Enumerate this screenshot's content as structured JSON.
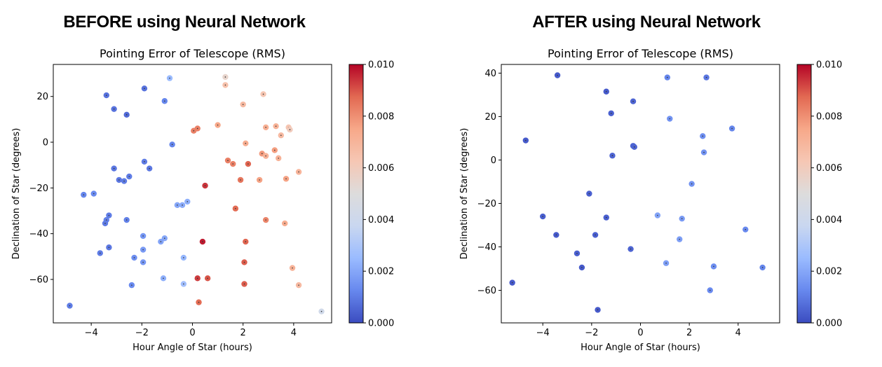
{
  "headings": {
    "before": "BEFORE using Neural Network",
    "after": "AFTER using Neural Network"
  },
  "colormap": {
    "name": "coolwarm",
    "stops": [
      "#3b4cc0",
      "#6788ee",
      "#9abbff",
      "#c9d7f0",
      "#dddcdc",
      "#f6c7b4",
      "#f7a889",
      "#e26952",
      "#b40426"
    ]
  },
  "chart_data": [
    {
      "type": "scatter",
      "title": "Pointing Error of Telescope (RMS)",
      "xlabel": "Hour Angle of Star (hours)",
      "ylabel": "Declination of Star (degrees)",
      "xlim": [
        -5.5,
        5.5
      ],
      "ylim": [
        -79,
        34
      ],
      "xticks": [
        -4,
        -2,
        0,
        2,
        4
      ],
      "yticks": [
        -60,
        -40,
        -20,
        0,
        20
      ],
      "xtick_labels": [
        "−4",
        "−2",
        "0",
        "2",
        "4"
      ],
      "ytick_labels": [
        "−60",
        "−40",
        "−20",
        "0",
        "20"
      ],
      "colorbar": {
        "range": [
          0,
          0.01
        ],
        "ticks": [
          0,
          0.002,
          0.004,
          0.006,
          0.008,
          0.01
        ],
        "tick_labels": [
          "0.000",
          "0.002",
          "0.004",
          "0.006",
          "0.008",
          "0.010"
        ]
      },
      "points": [
        {
          "x": -0.9,
          "y": 28,
          "v": 0.0025
        },
        {
          "x": 1.3,
          "y": 28.5,
          "v": 0.0055
        },
        {
          "x": 1.3,
          "y": 25,
          "v": 0.0065
        },
        {
          "x": 2.8,
          "y": 21,
          "v": 0.0063
        },
        {
          "x": -3.4,
          "y": 20.5,
          "v": 0.0008
        },
        {
          "x": -1.9,
          "y": 23.5,
          "v": 0.0008
        },
        {
          "x": -1.1,
          "y": 18,
          "v": 0.0012
        },
        {
          "x": -3.1,
          "y": 14.5,
          "v": 0.0008
        },
        {
          "x": -2.6,
          "y": 12,
          "v": 0.0006
        },
        {
          "x": 2.0,
          "y": 16.5,
          "v": 0.0068
        },
        {
          "x": 1.0,
          "y": 7.5,
          "v": 0.0075
        },
        {
          "x": 0.2,
          "y": 6,
          "v": 0.0083
        },
        {
          "x": 0.05,
          "y": 5,
          "v": 0.0083
        },
        {
          "x": 2.9,
          "y": 6.5,
          "v": 0.0072
        },
        {
          "x": 3.3,
          "y": 7,
          "v": 0.0071
        },
        {
          "x": 3.8,
          "y": 6.5,
          "v": 0.0063
        },
        {
          "x": 3.85,
          "y": 5.5,
          "v": 0.006
        },
        {
          "x": 3.5,
          "y": 3,
          "v": 0.0068
        },
        {
          "x": -0.8,
          "y": -1,
          "v": 0.0012
        },
        {
          "x": 2.1,
          "y": -0.5,
          "v": 0.0073
        },
        {
          "x": 2.75,
          "y": -5,
          "v": 0.0078
        },
        {
          "x": 3.25,
          "y": -3.5,
          "v": 0.0077
        },
        {
          "x": 2.9,
          "y": -6,
          "v": 0.0071
        },
        {
          "x": 3.4,
          "y": -7,
          "v": 0.0071
        },
        {
          "x": 1.4,
          "y": -8,
          "v": 0.0083
        },
        {
          "x": 1.6,
          "y": -9.5,
          "v": 0.0083
        },
        {
          "x": 2.2,
          "y": -9.5,
          "v": 0.0088
        },
        {
          "x": 4.2,
          "y": -13,
          "v": 0.007
        },
        {
          "x": -1.9,
          "y": -8.5,
          "v": 0.001
        },
        {
          "x": -1.7,
          "y": -11.5,
          "v": 0.0009
        },
        {
          "x": -3.1,
          "y": -11.5,
          "v": 0.0009
        },
        {
          "x": -2.5,
          "y": -15,
          "v": 0.001
        },
        {
          "x": -2.9,
          "y": -16.5,
          "v": 0.0009
        },
        {
          "x": -2.7,
          "y": -17,
          "v": 0.001
        },
        {
          "x": 1.9,
          "y": -16.5,
          "v": 0.0085
        },
        {
          "x": 2.65,
          "y": -16.5,
          "v": 0.0076
        },
        {
          "x": 3.7,
          "y": -16,
          "v": 0.0076
        },
        {
          "x": 0.5,
          "y": -19,
          "v": 0.0094
        },
        {
          "x": -4.3,
          "y": -23,
          "v": 0.0012
        },
        {
          "x": -3.9,
          "y": -22.5,
          "v": 0.0013
        },
        {
          "x": -0.2,
          "y": -26,
          "v": 0.0022
        },
        {
          "x": -0.6,
          "y": -27.5,
          "v": 0.002
        },
        {
          "x": -0.4,
          "y": -27.5,
          "v": 0.0021
        },
        {
          "x": 1.7,
          "y": -29,
          "v": 0.0087
        },
        {
          "x": -3.3,
          "y": -32,
          "v": 0.001
        },
        {
          "x": -3.4,
          "y": -34,
          "v": 0.0011
        },
        {
          "x": -3.45,
          "y": -35.5,
          "v": 0.001
        },
        {
          "x": -2.6,
          "y": -34,
          "v": 0.0011
        },
        {
          "x": 2.9,
          "y": -34,
          "v": 0.0082
        },
        {
          "x": 3.65,
          "y": -35.5,
          "v": 0.0073
        },
        {
          "x": -1.95,
          "y": -41,
          "v": 0.0016
        },
        {
          "x": -1.1,
          "y": -42,
          "v": 0.002
        },
        {
          "x": -1.25,
          "y": -43.5,
          "v": 0.0019
        },
        {
          "x": 0.4,
          "y": -43.5,
          "v": 0.0097
        },
        {
          "x": 2.1,
          "y": -43.5,
          "v": 0.0088
        },
        {
          "x": -3.3,
          "y": -46,
          "v": 0.0009
        },
        {
          "x": -1.95,
          "y": -47,
          "v": 0.0017
        },
        {
          "x": -3.65,
          "y": -48.5,
          "v": 0.001
        },
        {
          "x": -2.3,
          "y": -50.5,
          "v": 0.0014
        },
        {
          "x": -0.35,
          "y": -50.5,
          "v": 0.0024
        },
        {
          "x": -1.95,
          "y": -52.5,
          "v": 0.0016
        },
        {
          "x": 2.05,
          "y": -52.5,
          "v": 0.0089
        },
        {
          "x": 3.95,
          "y": -55,
          "v": 0.0071
        },
        {
          "x": -1.15,
          "y": -59.5,
          "v": 0.0022
        },
        {
          "x": 0.2,
          "y": -59.5,
          "v": 0.0093
        },
        {
          "x": 0.6,
          "y": -59.5,
          "v": 0.009
        },
        {
          "x": -0.35,
          "y": -62,
          "v": 0.0027
        },
        {
          "x": 2.05,
          "y": -62,
          "v": 0.0089
        },
        {
          "x": 4.2,
          "y": -62.5,
          "v": 0.0068
        },
        {
          "x": -2.4,
          "y": -62.5,
          "v": 0.0013
        },
        {
          "x": 0.25,
          "y": -70,
          "v": 0.0087
        },
        {
          "x": -4.85,
          "y": -71.5,
          "v": 0.001
        },
        {
          "x": 5.1,
          "y": -74,
          "v": 0.0042
        }
      ]
    },
    {
      "type": "scatter",
      "title": "Pointing Error of Telescope (RMS)",
      "xlabel": "Hour Angle of Star (hours)",
      "ylabel": "Declination of Star (degrees)",
      "xlim": [
        -5.7,
        5.7
      ],
      "ylim": [
        -75,
        44
      ],
      "xticks": [
        -4,
        -2,
        0,
        2,
        4
      ],
      "yticks": [
        -60,
        -40,
        -20,
        0,
        20,
        40
      ],
      "xtick_labels": [
        "−4",
        "−2",
        "0",
        "2",
        "4"
      ],
      "ytick_labels": [
        "−60",
        "−40",
        "−20",
        "0",
        "20",
        "40"
      ],
      "colorbar": {
        "range": [
          0,
          0.01
        ],
        "ticks": [
          0,
          0.002,
          0.004,
          0.006,
          0.008,
          0.01
        ],
        "tick_labels": [
          "0.000",
          "0.002",
          "0.004",
          "0.006",
          "0.008",
          "0.010"
        ]
      },
      "points": [
        {
          "x": -3.4,
          "y": 39,
          "v": 0.0003
        },
        {
          "x": 1.1,
          "y": 38,
          "v": 0.0012
        },
        {
          "x": 2.7,
          "y": 38,
          "v": 0.0009
        },
        {
          "x": -1.4,
          "y": 31.5,
          "v": 0.0003
        },
        {
          "x": -0.3,
          "y": 27,
          "v": 0.0005
        },
        {
          "x": -1.2,
          "y": 21.5,
          "v": 0.0004
        },
        {
          "x": 1.2,
          "y": 19,
          "v": 0.0015
        },
        {
          "x": 3.75,
          "y": 14.5,
          "v": 0.0012
        },
        {
          "x": 2.55,
          "y": 11,
          "v": 0.0014
        },
        {
          "x": -4.7,
          "y": 9,
          "v": 0.0003
        },
        {
          "x": -0.3,
          "y": 6.5,
          "v": 0.0005
        },
        {
          "x": -0.25,
          "y": 6,
          "v": 0.0005
        },
        {
          "x": 2.6,
          "y": 3.5,
          "v": 0.0015
        },
        {
          "x": -1.15,
          "y": 2,
          "v": 0.0005
        },
        {
          "x": 2.1,
          "y": -11,
          "v": 0.0015
        },
        {
          "x": -2.1,
          "y": -15.5,
          "v": 0.0004
        },
        {
          "x": -4.0,
          "y": -26,
          "v": 0.0004
        },
        {
          "x": -1.4,
          "y": -26.5,
          "v": 0.0004
        },
        {
          "x": 0.7,
          "y": -25.5,
          "v": 0.0019
        },
        {
          "x": 1.7,
          "y": -27,
          "v": 0.0017
        },
        {
          "x": -3.45,
          "y": -34.5,
          "v": 0.0003
        },
        {
          "x": -1.85,
          "y": -34.5,
          "v": 0.0004
        },
        {
          "x": 1.6,
          "y": -36.5,
          "v": 0.0018
        },
        {
          "x": 4.3,
          "y": -32,
          "v": 0.0013
        },
        {
          "x": -0.4,
          "y": -41,
          "v": 0.0005
        },
        {
          "x": -2.6,
          "y": -43,
          "v": 0.0004
        },
        {
          "x": -2.4,
          "y": -49.5,
          "v": 0.0003
        },
        {
          "x": 1.05,
          "y": -47.5,
          "v": 0.0018
        },
        {
          "x": 3.0,
          "y": -49,
          "v": 0.0014
        },
        {
          "x": 5.0,
          "y": -49.5,
          "v": 0.0012
        },
        {
          "x": -5.25,
          "y": -56.5,
          "v": 0.0003
        },
        {
          "x": 2.85,
          "y": -60,
          "v": 0.0013
        },
        {
          "x": -1.75,
          "y": -69,
          "v": 0.0003
        }
      ]
    }
  ]
}
